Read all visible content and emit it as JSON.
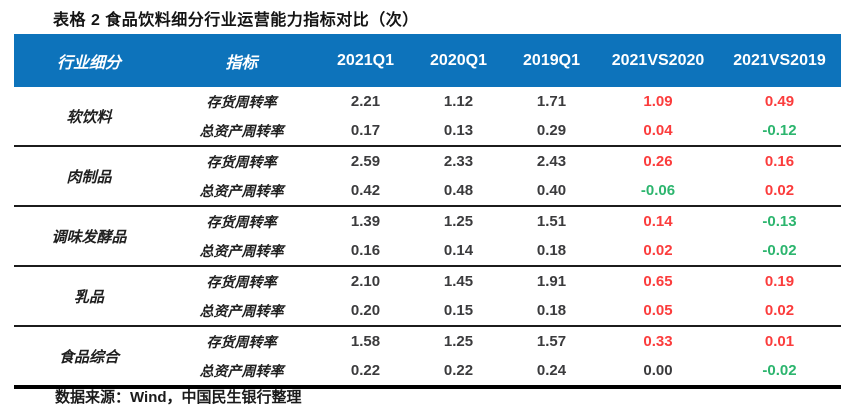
{
  "title": "表格 2 食品饮料细分行业运营能力指标对比（次）",
  "source": "数据来源：Wind，中国民生银行整理",
  "colors": {
    "header_bg": "#0d73bb",
    "header_text": "#ffffff",
    "number_text": "#3b3b3d",
    "delta_positive": "#fb3c3c",
    "delta_negative": "#2cb56e"
  },
  "chart_data": {
    "type": "table",
    "columns": [
      "行业细分",
      "指标",
      "2021Q1",
      "2020Q1",
      "2019Q1",
      "2021VS2020",
      "2021VS2019"
    ],
    "groups": [
      {
        "industry": "软饮料",
        "rows": [
          {
            "indicator": "存货周转率",
            "values": [
              "2.21",
              "1.12",
              "1.71",
              "1.09",
              "0.49"
            ]
          },
          {
            "indicator": "总资产周转率",
            "values": [
              "0.17",
              "0.13",
              "0.29",
              "0.04",
              "-0.12"
            ]
          }
        ]
      },
      {
        "industry": "肉制品",
        "rows": [
          {
            "indicator": "存货周转率",
            "values": [
              "2.59",
              "2.33",
              "2.43",
              "0.26",
              "0.16"
            ]
          },
          {
            "indicator": "总资产周转率",
            "values": [
              "0.42",
              "0.48",
              "0.40",
              "-0.06",
              "0.02"
            ]
          }
        ]
      },
      {
        "industry": "调味发酵品",
        "rows": [
          {
            "indicator": "存货周转率",
            "values": [
              "1.39",
              "1.25",
              "1.51",
              "0.14",
              "-0.13"
            ]
          },
          {
            "indicator": "总资产周转率",
            "values": [
              "0.16",
              "0.14",
              "0.18",
              "0.02",
              "-0.02"
            ]
          }
        ]
      },
      {
        "industry": "乳品",
        "rows": [
          {
            "indicator": "存货周转率",
            "values": [
              "2.10",
              "1.45",
              "1.91",
              "0.65",
              "0.19"
            ]
          },
          {
            "indicator": "总资产周转率",
            "values": [
              "0.20",
              "0.15",
              "0.18",
              "0.05",
              "0.02"
            ]
          }
        ]
      },
      {
        "industry": "食品综合",
        "rows": [
          {
            "indicator": "存货周转率",
            "values": [
              "1.58",
              "1.25",
              "1.57",
              "0.33",
              "0.01"
            ]
          },
          {
            "indicator": "总资产周转率",
            "values": [
              "0.22",
              "0.22",
              "0.24",
              "0.00",
              "-0.02"
            ]
          }
        ]
      }
    ]
  }
}
